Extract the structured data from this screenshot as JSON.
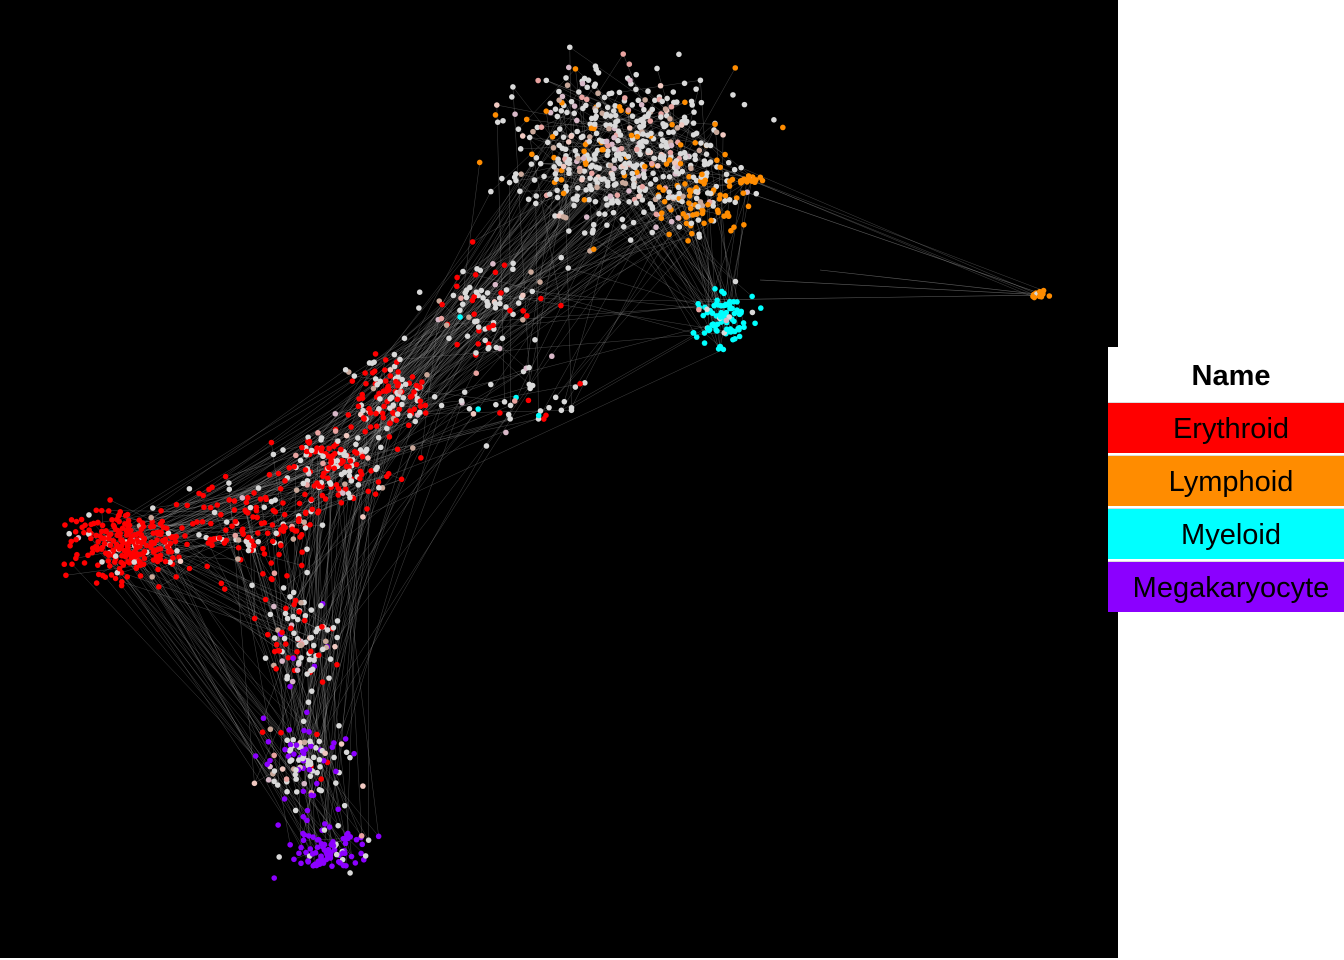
{
  "legend": {
    "title": "Name",
    "items": [
      {
        "label": "Erythroid",
        "color": "#ff0000"
      },
      {
        "label": "Lymphoid",
        "color": "#ff8c00"
      },
      {
        "label": "Myeloid",
        "color": "#00ffff"
      },
      {
        "label": "Megakaryocyte",
        "color": "#8b00ff"
      }
    ]
  },
  "colors": {
    "background": "#000000",
    "neutral_node": "#d9d9d9",
    "edge": "#9a9a9a"
  }
}
